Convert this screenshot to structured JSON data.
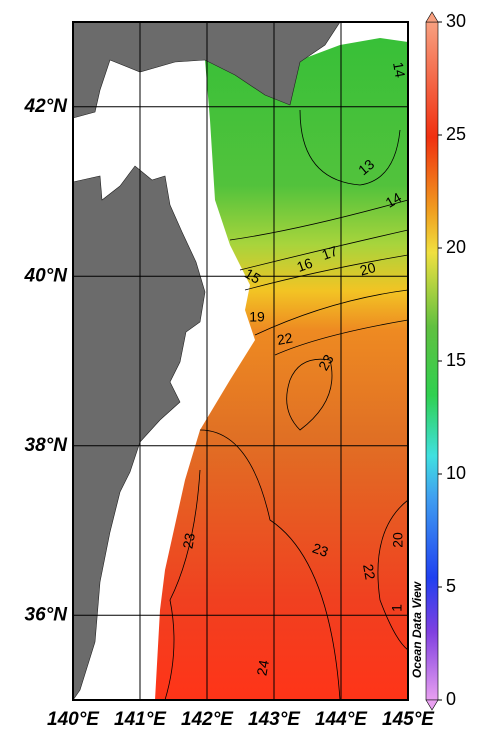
{
  "map": {
    "xlim": [
      140,
      145
    ],
    "ylim": [
      35,
      43
    ],
    "xticks": [
      {
        "value": 140,
        "label": "140°E"
      },
      {
        "value": 141,
        "label": "141°E"
      },
      {
        "value": 142,
        "label": "142°E"
      },
      {
        "value": 143,
        "label": "143°E"
      },
      {
        "value": 144,
        "label": "144°E"
      },
      {
        "value": 145,
        "label": "145°E"
      }
    ],
    "yticks": [
      {
        "value": 36,
        "label": "36°N"
      },
      {
        "value": 38,
        "label": "38°N"
      },
      {
        "value": 40,
        "label": "40°N"
      },
      {
        "value": 42,
        "label": "42°N"
      }
    ],
    "contour_labels": [
      14,
      13,
      14,
      15,
      16,
      17,
      20,
      19,
      22,
      23,
      23,
      23,
      22,
      20,
      24,
      1
    ],
    "watermark": "Ocean Data View"
  },
  "colorbar": {
    "lim": [
      0,
      30
    ],
    "ticks": [
      0,
      5,
      10,
      15,
      20,
      25,
      30
    ]
  }
}
